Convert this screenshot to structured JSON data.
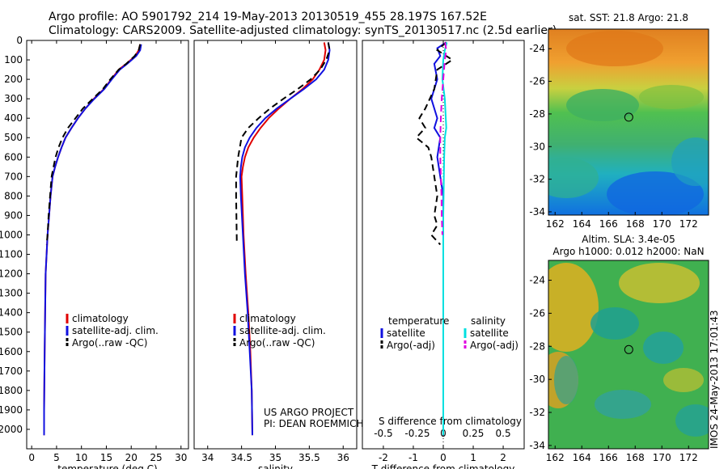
{
  "header": {
    "line1": "Argo profile: AO 5901792_214 19-May-2013 20130519_455 28.197S 167.52E",
    "line2": "Climatology: CARS2009. Satellite-adjusted climatology: synTS_20130517.nc (2.5d earlier)"
  },
  "stamp": "IMOS 24-May-2013 17:01:43",
  "colors": {
    "climatology": "#e00000",
    "satellite": "#1010e0",
    "argo": "#000000",
    "sat_salinity": "#00e0e0",
    "argo_salinity": "#e000e0"
  },
  "chart_data": [
    {
      "type": "line",
      "xlabel": "temperature (deg C)",
      "ylabel": "",
      "xlim": [
        -1,
        31.5
      ],
      "ylim": [
        2100,
        0
      ],
      "xticks": [
        "0",
        "5",
        "10",
        "15",
        "20",
        "25",
        "30"
      ],
      "yticks": [
        "0",
        "100",
        "200",
        "300",
        "400",
        "500",
        "600",
        "700",
        "800",
        "900",
        "1000",
        "1100",
        "1200",
        "1300",
        "1400",
        "1500",
        "1600",
        "1700",
        "1800",
        "1900",
        "2000"
      ],
      "legend": [
        "climatology",
        "satellite-adj. clim.",
        "Argo(..raw -QC)"
      ],
      "series": [
        {
          "name": "climatology",
          "style": "solid",
          "color_key": "climatology",
          "x": [
            21.8,
            21.5,
            20.8,
            19.0,
            17.5,
            16.0,
            14.5,
            12.5,
            10.8,
            9.3,
            8.0,
            6.8,
            6.0,
            5.3,
            4.7,
            4.2,
            3.8,
            3.5,
            3.2,
            3.0,
            2.8,
            2.7,
            2.6,
            2.5,
            2.5
          ],
          "y": [
            20,
            50,
            80,
            120,
            150,
            200,
            250,
            300,
            350,
            400,
            450,
            500,
            550,
            600,
            650,
            700,
            800,
            900,
            1000,
            1100,
            1200,
            1400,
            1600,
            1900,
            2030
          ]
        },
        {
          "name": "satellite-adj. clim.",
          "style": "solid",
          "color_key": "satellite",
          "x": [
            22.0,
            21.8,
            21.0,
            19.2,
            17.7,
            16.1,
            14.6,
            12.6,
            10.8,
            9.3,
            8.0,
            6.8,
            6.0,
            5.3,
            4.7,
            4.2,
            3.8,
            3.5,
            3.2,
            3.0,
            2.8,
            2.7,
            2.6,
            2.5,
            2.5
          ],
          "y": [
            20,
            50,
            80,
            120,
            150,
            200,
            250,
            300,
            350,
            400,
            450,
            500,
            550,
            600,
            650,
            700,
            800,
            900,
            1000,
            1100,
            1200,
            1400,
            1600,
            1900,
            2030
          ]
        },
        {
          "name": "Argo(..raw -QC)",
          "style": "dash",
          "color_key": "argo",
          "x": [
            21.8,
            21.5,
            20.7,
            19.0,
            17.5,
            15.8,
            14.3,
            12.3,
            10.3,
            8.8,
            7.3,
            6.2,
            5.4,
            4.8,
            4.4,
            4.0,
            3.7,
            3.4,
            3.2,
            3.0
          ],
          "y": [
            20,
            50,
            80,
            120,
            150,
            200,
            250,
            300,
            350,
            400,
            450,
            500,
            550,
            600,
            650,
            700,
            800,
            900,
            1000,
            1050
          ]
        }
      ]
    },
    {
      "type": "line",
      "xlabel": "salinity",
      "xlim": [
        33.8,
        36.2
      ],
      "ylim": [
        2100,
        0
      ],
      "xticks": [
        "34",
        "34.5",
        "35",
        "35.5",
        "36"
      ],
      "legend": [
        "climatology",
        "satellite-adj. clim.",
        "Argo(..raw -QC)"
      ],
      "annotation": [
        "US ARGO PROJECT",
        "PI: DEAN ROEMMICH"
      ],
      "series": [
        {
          "name": "climatology",
          "style": "solid",
          "color_key": "climatology",
          "x": [
            35.72,
            35.74,
            35.72,
            35.65,
            35.55,
            35.4,
            35.22,
            35.05,
            34.9,
            34.78,
            34.68,
            34.6,
            34.55,
            34.52,
            34.5,
            34.51,
            34.53,
            34.56,
            34.6,
            34.63,
            34.65,
            34.66
          ],
          "y": [
            10,
            50,
            100,
            150,
            200,
            250,
            300,
            350,
            400,
            450,
            500,
            550,
            600,
            650,
            700,
            800,
            1000,
            1200,
            1400,
            1600,
            1800,
            2030
          ]
        },
        {
          "name": "satellite-adj. clim.",
          "style": "solid",
          "color_key": "satellite",
          "x": [
            35.78,
            35.8,
            35.78,
            35.72,
            35.6,
            35.42,
            35.22,
            35.02,
            34.85,
            34.72,
            34.62,
            34.55,
            34.51,
            34.49,
            34.48,
            34.49,
            34.52,
            34.55,
            34.59,
            34.62,
            34.65,
            34.66
          ],
          "y": [
            10,
            50,
            100,
            150,
            200,
            250,
            300,
            350,
            400,
            450,
            500,
            550,
            600,
            650,
            700,
            800,
            1000,
            1200,
            1400,
            1600,
            1800,
            2030
          ]
        },
        {
          "name": "Argo(..raw -QC)",
          "style": "dash",
          "color_key": "argo",
          "x": [
            35.78,
            35.8,
            35.75,
            35.66,
            35.52,
            35.33,
            35.12,
            34.92,
            34.75,
            34.6,
            34.5,
            34.45,
            34.42,
            34.42,
            34.43
          ],
          "y": [
            10,
            50,
            100,
            150,
            200,
            250,
            300,
            350,
            400,
            450,
            500,
            600,
            700,
            800,
            1050
          ]
        }
      ]
    },
    {
      "type": "line",
      "xlabel": "T difference from climatology",
      "xlabel2": "S difference from climatology",
      "xlim": [
        -2.7,
        2.7
      ],
      "ylim": [
        2100,
        0
      ],
      "xticks": [
        "-2",
        "-1",
        "0",
        "1",
        "2"
      ],
      "xticks_s": [
        "-0.5",
        "-0.25",
        "0",
        "0.25",
        "0.5"
      ],
      "legend_headers": [
        "temperature",
        "salinity"
      ],
      "legend": [
        "satellite",
        "Argo(-adj)",
        "satellite",
        "Argo(-adj)"
      ],
      "series": [
        {
          "name": "satellite",
          "quantity": "temperature",
          "style": "solid",
          "color_key": "satellite",
          "x": [
            0.1,
            -0.2,
            -0.1,
            -0.3,
            -0.2,
            -0.4,
            -0.2,
            -0.3,
            -0.1,
            -0.2,
            -0.1,
            0.0,
            0.0,
            0.0,
            0.0,
            0.0
          ],
          "y": [
            10,
            40,
            80,
            120,
            200,
            300,
            400,
            450,
            500,
            600,
            700,
            800,
            1000,
            1400,
            1800,
            2030
          ]
        },
        {
          "name": "Argo(-adj)",
          "quantity": "temperature",
          "style": "dash",
          "color_key": "argo",
          "x": [
            0.1,
            -0.2,
            0.3,
            -0.2,
            -0.3,
            -0.6,
            -0.8,
            -0.6,
            -0.9,
            -0.5,
            -0.4,
            -0.3,
            -0.2,
            -0.3,
            -0.2,
            -0.4,
            -0.1
          ],
          "y": [
            10,
            50,
            100,
            150,
            250,
            350,
            400,
            450,
            500,
            550,
            600,
            700,
            800,
            900,
            950,
            1000,
            1050
          ]
        },
        {
          "name": "satellite",
          "quantity": "salinity",
          "style": "solid",
          "color_key": "sat_salinity",
          "x": [
            0.12,
            0.05,
            0.0,
            -0.03,
            0.05,
            0.1,
            0.05,
            0.03,
            0.02,
            0.01,
            0.0,
            0.0,
            0.0,
            0.0
          ],
          "y": [
            10,
            50,
            100,
            200,
            300,
            450,
            500,
            600,
            700,
            800,
            900,
            1000,
            1500,
            2030
          ]
        },
        {
          "name": "Argo(-adj)",
          "quantity": "salinity",
          "style": "dash",
          "color_key": "argo_salinity",
          "x": [
            0.06,
            0.1,
            0.05,
            0.0,
            -0.05,
            -0.08,
            -0.1,
            -0.1,
            -0.08,
            -0.06,
            -0.05,
            -0.03
          ],
          "y": [
            10,
            50,
            100,
            200,
            300,
            400,
            500,
            600,
            700,
            800,
            900,
            1000
          ]
        }
      ]
    },
    {
      "type": "heatmap",
      "title": "sat. SST: 21.8 Argo: 21.8",
      "xlim": [
        161.5,
        173.5
      ],
      "ylim": [
        -34.2,
        -22.8
      ],
      "xticks": [
        "162",
        "164",
        "166",
        "168",
        "170",
        "172"
      ],
      "yticks": [
        "-24",
        "-26",
        "-28",
        "-30",
        "-32",
        "-34"
      ],
      "marker": {
        "lon": 167.52,
        "lat": -28.197
      }
    },
    {
      "type": "heatmap",
      "title": "Altim. SLA: 3.4e-05",
      "subtitle": "Argo h1000: 0.012 h2000: NaN",
      "xlim": [
        161.5,
        173.5
      ],
      "ylim": [
        -34.2,
        -22.8
      ],
      "xticks": [
        "162",
        "164",
        "166",
        "168",
        "170",
        "172"
      ],
      "yticks": [
        "-24",
        "-26",
        "-28",
        "-30",
        "-32",
        "-34"
      ],
      "marker": {
        "lon": 167.52,
        "lat": -28.197
      }
    }
  ]
}
